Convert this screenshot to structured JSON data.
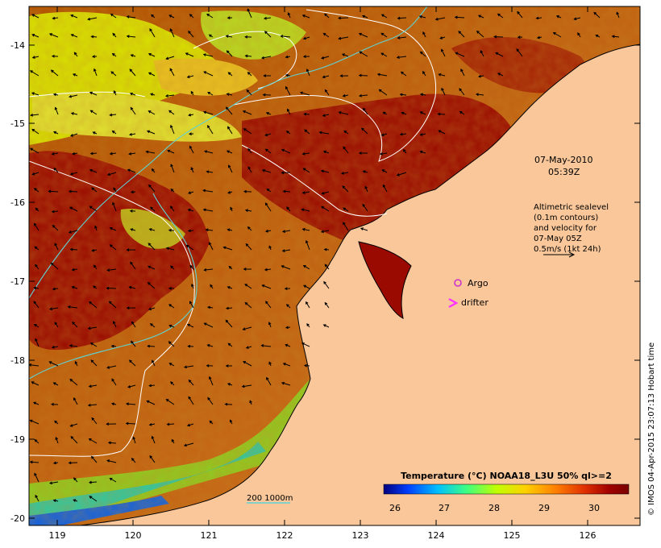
{
  "map": {
    "date_label": "07-May-2010",
    "time_label": "05:39Z",
    "lon_ticks": [
      "119",
      "120",
      "121",
      "122",
      "123",
      "124",
      "125",
      "126"
    ],
    "lat_ticks": [
      "-14",
      "-15",
      "-16",
      "-17",
      "-18",
      "-19",
      "-20"
    ],
    "altimetry_note": [
      "Altimetric sealevel",
      "(0.1m contours)",
      "and velocity for",
      "07-May 05Z",
      "0.5m/s (1kt 24h)"
    ],
    "argo_label": "Argo",
    "drifter_label": "drifter",
    "depth_contours_label": "200  1000m",
    "credit": "© IMOS 04-Apr-2015 23:07:13 Hobart time",
    "colors": {
      "land": "#f9c79a",
      "argo": "#cc33cc",
      "drifter": "#ff33ff",
      "depth_contour": "#5fd4d4",
      "sealevel_contour": "#ffffff"
    }
  },
  "legend": {
    "title": "Temperature (°C) NOAA18_L3U 50% ql>=2",
    "ticks": [
      "26",
      "27",
      "28",
      "29",
      "30"
    ],
    "colors": [
      "#00007f",
      "#0040ff",
      "#00c0ff",
      "#40ff80",
      "#c0ff00",
      "#ffd000",
      "#ff8000",
      "#e03000",
      "#a00000",
      "#7a0000"
    ]
  }
}
